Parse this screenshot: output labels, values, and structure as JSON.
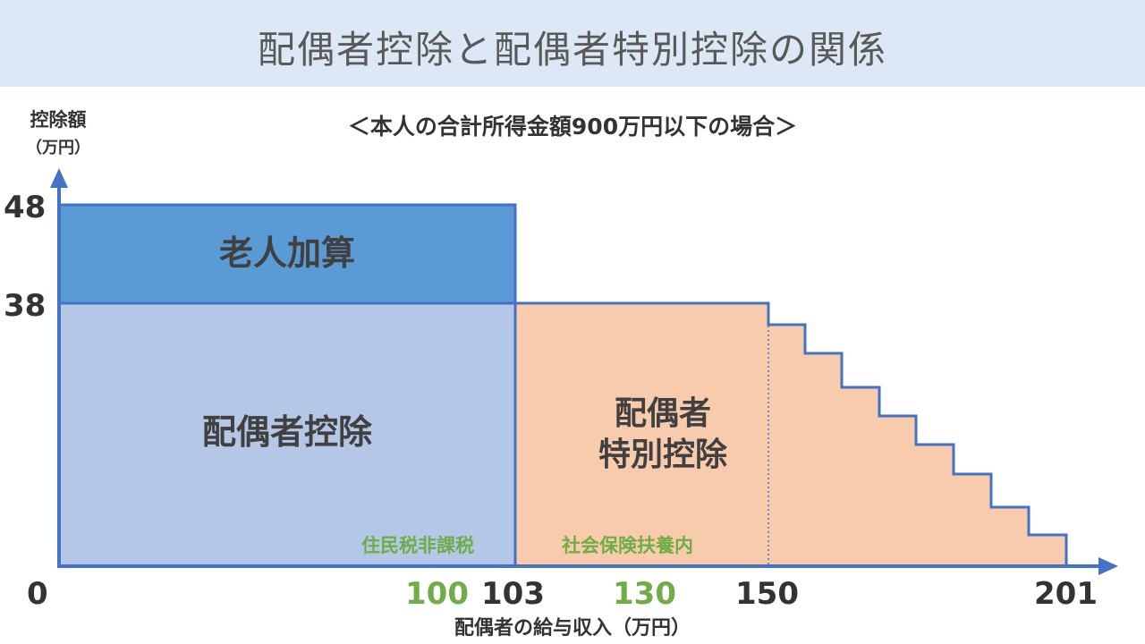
{
  "title": "配偶者控除と配偶者特別控除の関係",
  "subtitle": "＜本人の合計所得金額900万円以下の場合＞",
  "y_axis": {
    "label": "控除額",
    "unit": "（万円）"
  },
  "x_axis": {
    "label": "配偶者の給与収入（万円）"
  },
  "y_ticks": [
    "48",
    "38"
  ],
  "x_ticks": [
    {
      "text": "0",
      "highlight": false
    },
    {
      "text": "100",
      "highlight": true
    },
    {
      "text": "103",
      "highlight": false
    },
    {
      "text": "130",
      "highlight": true
    },
    {
      "text": "150",
      "highlight": false
    },
    {
      "text": "201",
      "highlight": false
    }
  ],
  "regions": {
    "elderly_addition": "老人加算",
    "spouse_deduction": "配偶者控除",
    "special_line1": "配偶者",
    "special_line2": "特別控除"
  },
  "notes": {
    "resident_tax_exempt": "住民税非課税",
    "social_insurance_dependent": "社会保険扶養内"
  },
  "colors": {
    "header_bg": "#dce8f5",
    "elderly_fill": "#5b9bd5",
    "spouse_fill": "#b4c7e7",
    "special_fill": "#f8cbad",
    "outline": "#4472c4",
    "highlight_text": "#70ad47"
  }
}
